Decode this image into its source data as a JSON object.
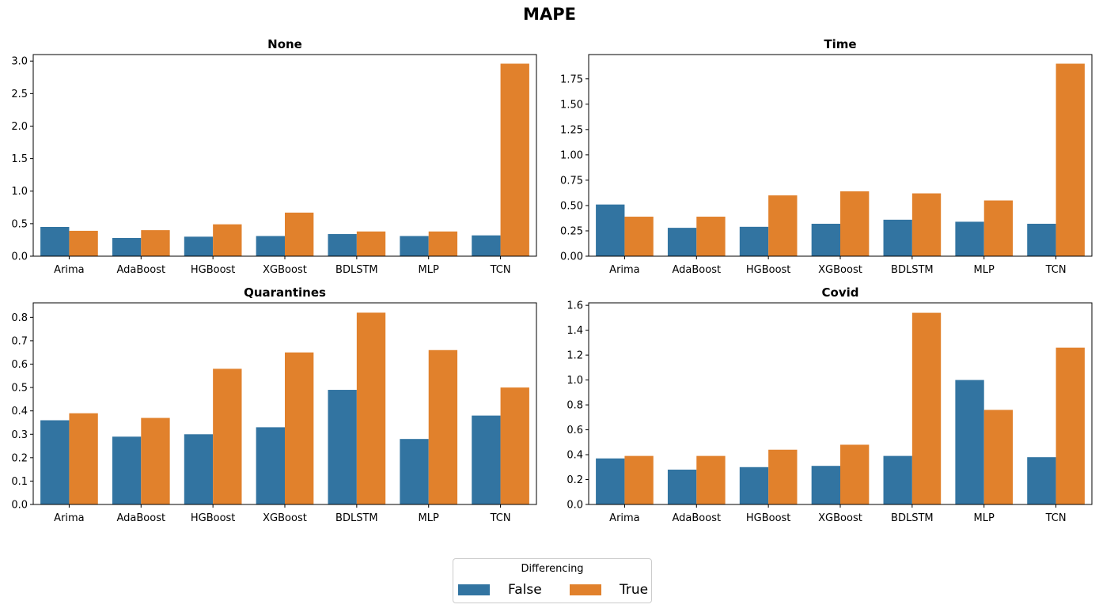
{
  "suptitle": "MAPE",
  "legend": {
    "title": "Differencing",
    "items": [
      {
        "label": "False",
        "color": "#3274a1"
      },
      {
        "label": "True",
        "color": "#e1812c"
      }
    ]
  },
  "chart_data": [
    {
      "type": "bar",
      "title": "None",
      "categories": [
        "Arima",
        "AdaBoost",
        "HGBoost",
        "XGBoost",
        "BDLSTM",
        "MLP",
        "TCN"
      ],
      "series": [
        {
          "name": "False",
          "values": [
            0.45,
            0.28,
            0.3,
            0.31,
            0.34,
            0.31,
            0.32
          ]
        },
        {
          "name": "True",
          "values": [
            0.39,
            0.4,
            0.49,
            0.67,
            0.38,
            0.38,
            2.96
          ]
        }
      ],
      "ylim": [
        0,
        3.1
      ],
      "yticks": [
        0.0,
        0.5,
        1.0,
        1.5,
        2.0,
        2.5,
        3.0
      ],
      "ytick_labels": [
        "0.0",
        "0.5",
        "1.0",
        "1.5",
        "2.0",
        "2.5",
        "3.0"
      ]
    },
    {
      "type": "bar",
      "title": "Time",
      "categories": [
        "Arima",
        "AdaBoost",
        "HGBoost",
        "XGBoost",
        "BDLSTM",
        "MLP",
        "TCN"
      ],
      "series": [
        {
          "name": "False",
          "values": [
            0.51,
            0.28,
            0.29,
            0.32,
            0.36,
            0.34,
            0.32
          ]
        },
        {
          "name": "True",
          "values": [
            0.39,
            0.39,
            0.6,
            0.64,
            0.62,
            0.55,
            1.9
          ]
        }
      ],
      "ylim": [
        0,
        1.99
      ],
      "yticks": [
        0.0,
        0.25,
        0.5,
        0.75,
        1.0,
        1.25,
        1.5,
        1.75
      ],
      "ytick_labels": [
        "0.00",
        "0.25",
        "0.50",
        "0.75",
        "1.00",
        "1.25",
        "1.50",
        "1.75"
      ]
    },
    {
      "type": "bar",
      "title": "Quarantines",
      "categories": [
        "Arima",
        "AdaBoost",
        "HGBoost",
        "XGBoost",
        "BDLSTM",
        "MLP",
        "TCN"
      ],
      "series": [
        {
          "name": "False",
          "values": [
            0.36,
            0.29,
            0.3,
            0.33,
            0.49,
            0.28,
            0.38
          ]
        },
        {
          "name": "True",
          "values": [
            0.39,
            0.37,
            0.58,
            0.65,
            0.82,
            0.66,
            0.5
          ]
        }
      ],
      "ylim": [
        0,
        0.862
      ],
      "yticks": [
        0.0,
        0.1,
        0.2,
        0.3,
        0.4,
        0.5,
        0.6,
        0.7,
        0.8
      ],
      "ytick_labels": [
        "0.0",
        "0.1",
        "0.2",
        "0.3",
        "0.4",
        "0.5",
        "0.6",
        "0.7",
        "0.8"
      ]
    },
    {
      "type": "bar",
      "title": "Covid",
      "categories": [
        "Arima",
        "AdaBoost",
        "HGBoost",
        "XGBoost",
        "BDLSTM",
        "MLP",
        "TCN"
      ],
      "series": [
        {
          "name": "False",
          "values": [
            0.37,
            0.28,
            0.3,
            0.31,
            0.39,
            1.0,
            0.38
          ]
        },
        {
          "name": "True",
          "values": [
            0.39,
            0.39,
            0.44,
            0.48,
            1.54,
            0.76,
            1.26
          ]
        }
      ],
      "ylim": [
        0,
        1.62
      ],
      "yticks": [
        0.0,
        0.2,
        0.4,
        0.6,
        0.8,
        1.0,
        1.2,
        1.4,
        1.6
      ],
      "ytick_labels": [
        "0.0",
        "0.2",
        "0.4",
        "0.6",
        "0.8",
        "1.0",
        "1.2",
        "1.4",
        "1.6"
      ]
    }
  ]
}
